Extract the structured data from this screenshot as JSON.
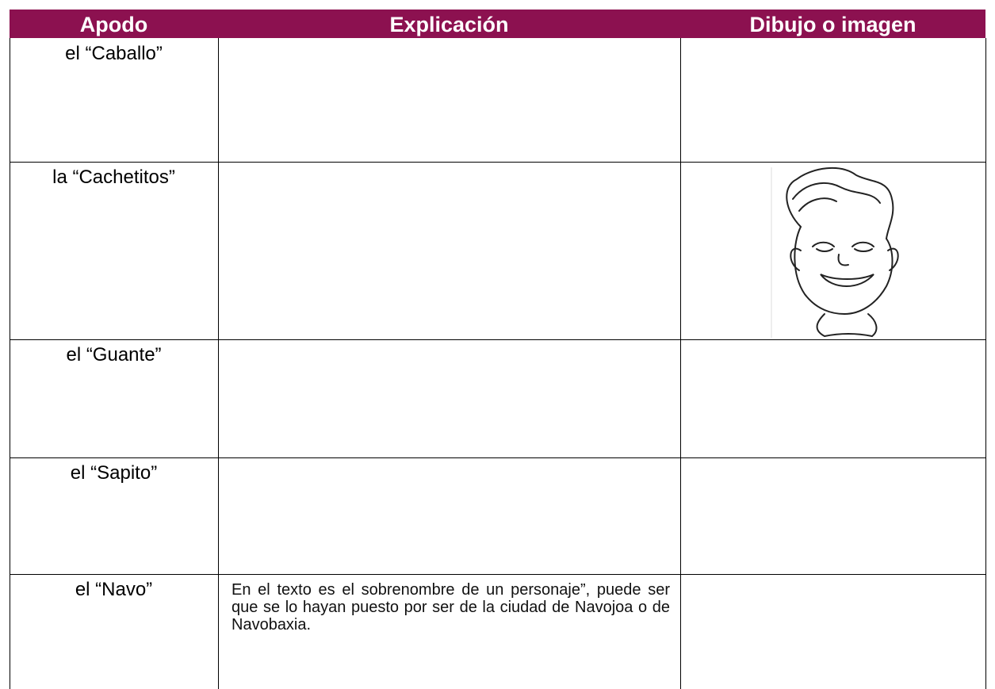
{
  "table": {
    "header": [
      "Apodo",
      "Explicación",
      "Dibujo o imagen"
    ],
    "rows": [
      {
        "apodo": "el “Caballo”"
      },
      {
        "apodo": "la “Cachetitos”"
      },
      {
        "apodo": "el “Guante”"
      },
      {
        "apodo": "el “Sapito”"
      },
      {
        "apodo": "el “Navo”",
        "explicacion": "En el texto es el sobrenombre de un personaje”, puede ser que se lo hayan puesto por ser de la ciudad de Navojoa o de Navobaxia."
      }
    ]
  }
}
